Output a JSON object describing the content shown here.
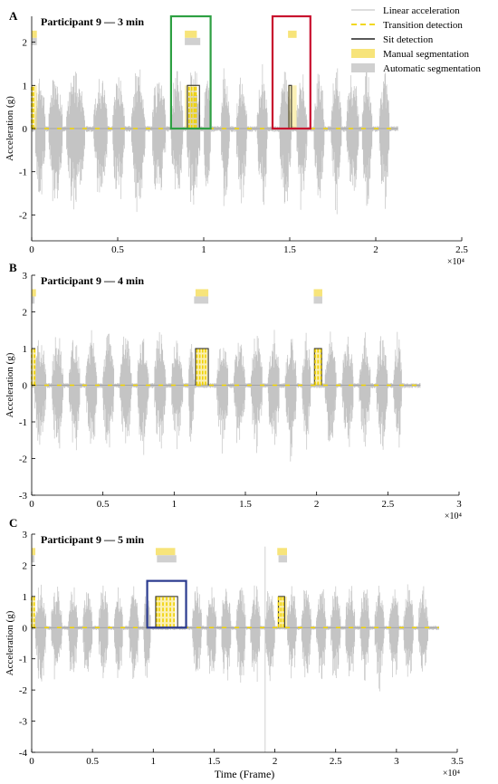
{
  "chart_data": [
    {
      "type": "line",
      "panel_label": "A",
      "title": "Participant 9 — 3 min",
      "xlabel": "",
      "ylabel": "Acceleration (g)",
      "xlim": [
        0,
        2.5
      ],
      "ylim": [
        -2.6,
        2.6
      ],
      "xticks": [
        "0",
        "0.5",
        "1",
        "1.5",
        "2",
        "2.5"
      ],
      "xtick_values": [
        0,
        0.5,
        1,
        1.5,
        2,
        2.5
      ],
      "yticks": [
        "-2",
        "-1",
        "0",
        "1",
        "2"
      ],
      "ytick_values": [
        -2,
        -1,
        0,
        1,
        2
      ],
      "x_multiplier": "×10⁴",
      "signal_end_x": 2.13,
      "active_bursts": [
        [
          0.02,
          0.08
        ],
        [
          0.1,
          0.18
        ],
        [
          0.2,
          0.31
        ],
        [
          0.36,
          0.44
        ],
        [
          0.47,
          0.54
        ],
        [
          0.58,
          0.66
        ],
        [
          0.7,
          0.78
        ],
        [
          0.81,
          0.88
        ],
        [
          0.9,
          0.98
        ],
        [
          1.0,
          1.04
        ],
        [
          1.1,
          1.15
        ],
        [
          1.19,
          1.25
        ],
        [
          1.31,
          1.37
        ],
        [
          1.44,
          1.51
        ],
        [
          1.54,
          1.6
        ],
        [
          1.64,
          1.7
        ],
        [
          1.74,
          1.8
        ],
        [
          1.83,
          1.9
        ],
        [
          1.92,
          1.98
        ],
        [
          2.02,
          2.08
        ]
      ],
      "manual_segments": [
        [
          0.0,
          0.03
        ],
        [
          0.89,
          0.96
        ],
        [
          1.49,
          1.54
        ]
      ],
      "automatic_segments": [
        [
          0.0,
          0.03
        ],
        [
          0.89,
          0.98
        ]
      ],
      "sit_detection_high": [
        [
          0.905,
          0.975
        ],
        [
          1.495,
          1.51
        ]
      ],
      "transition_marks": [
        0.0,
        0.01,
        0.915,
        0.93,
        0.945,
        0.955
      ],
      "highlight_boxes": [
        {
          "x": [
            0.81,
            1.04
          ],
          "y": [
            0.0,
            2.6
          ],
          "color": "#2ea043"
        },
        {
          "x": [
            1.4,
            1.62
          ],
          "y": [
            0.0,
            2.6
          ],
          "color": "#c8102e"
        }
      ]
    },
    {
      "type": "line",
      "panel_label": "B",
      "title": "Participant 9 — 4 min",
      "xlabel": "",
      "ylabel": "Acceleration (g)",
      "xlim": [
        0,
        3
      ],
      "ylim": [
        -3,
        3
      ],
      "xticks": [
        "0",
        "0.5",
        "1",
        "1.5",
        "2",
        "2.5",
        "3"
      ],
      "xtick_values": [
        0,
        0.5,
        1,
        1.5,
        2,
        2.5,
        3
      ],
      "yticks": [
        "-3",
        "-2",
        "-1",
        "0",
        "1",
        "2",
        "3"
      ],
      "ytick_values": [
        -3,
        -2,
        -1,
        0,
        1,
        2,
        3
      ],
      "x_multiplier": "×10⁴",
      "signal_end_x": 2.73,
      "active_bursts": [
        [
          0.02,
          0.1
        ],
        [
          0.14,
          0.22
        ],
        [
          0.26,
          0.34
        ],
        [
          0.38,
          0.46
        ],
        [
          0.5,
          0.58
        ],
        [
          0.62,
          0.7
        ],
        [
          0.74,
          0.82
        ],
        [
          0.86,
          0.94
        ],
        [
          0.98,
          1.06
        ],
        [
          1.1,
          1.14
        ],
        [
          1.3,
          1.38
        ],
        [
          1.42,
          1.5
        ],
        [
          1.54,
          1.62
        ],
        [
          1.66,
          1.74
        ],
        [
          1.78,
          1.86
        ],
        [
          1.9,
          1.96
        ],
        [
          2.06,
          2.14
        ],
        [
          2.18,
          2.26
        ],
        [
          2.3,
          2.38
        ],
        [
          2.42,
          2.5
        ],
        [
          2.54,
          2.6
        ]
      ],
      "manual_segments": [
        [
          0.0,
          0.03
        ],
        [
          1.15,
          1.24
        ],
        [
          1.98,
          2.04
        ]
      ],
      "automatic_segments": [
        [
          0.0,
          0.02
        ],
        [
          1.14,
          1.24
        ],
        [
          1.98,
          2.04
        ]
      ],
      "sit_detection_high": [
        [
          1.15,
          1.24
        ],
        [
          1.985,
          2.035
        ]
      ],
      "transition_marks": [
        0.0,
        0.02,
        1.16,
        1.18,
        1.2,
        1.22,
        1.99,
        2.01,
        2.03
      ],
      "highlight_boxes": []
    },
    {
      "type": "line",
      "panel_label": "C",
      "title": "Participant 9 — 5 min",
      "xlabel": "Time (Frame)",
      "ylabel": "Acceleration (g)",
      "xlim": [
        0,
        3.5
      ],
      "ylim": [
        -4,
        3
      ],
      "xticks": [
        "0",
        "0.5",
        "1",
        "1.5",
        "2",
        "2.5",
        "3",
        "3.5"
      ],
      "xtick_values": [
        0,
        0.5,
        1,
        1.5,
        2,
        2.5,
        3,
        3.5
      ],
      "yticks": [
        "-4",
        "-3",
        "-2",
        "-1",
        "0",
        "1",
        "2",
        "3"
      ],
      "ytick_values": [
        -4,
        -3,
        -2,
        -1,
        0,
        1,
        2,
        3
      ],
      "x_multiplier": "×10⁴",
      "signal_end_x": 3.35,
      "active_bursts": [
        [
          0.03,
          0.12
        ],
        [
          0.16,
          0.25
        ],
        [
          0.3,
          0.38
        ],
        [
          0.42,
          0.5
        ],
        [
          0.55,
          0.63
        ],
        [
          0.68,
          0.75
        ],
        [
          0.8,
          0.88
        ],
        [
          0.92,
          0.98
        ],
        [
          1.32,
          1.4
        ],
        [
          1.44,
          1.52
        ],
        [
          1.56,
          1.64
        ],
        [
          1.68,
          1.76
        ],
        [
          1.8,
          1.88
        ],
        [
          1.92,
          2.0
        ],
        [
          2.1,
          2.18
        ],
        [
          2.22,
          2.3
        ],
        [
          2.34,
          2.42
        ],
        [
          2.46,
          2.54
        ],
        [
          2.58,
          2.66
        ],
        [
          2.7,
          2.78
        ],
        [
          2.82,
          2.9
        ],
        [
          2.94,
          3.02
        ],
        [
          3.06,
          3.14
        ],
        [
          3.18,
          3.26
        ]
      ],
      "manual_segments": [
        [
          0.0,
          0.03
        ],
        [
          1.02,
          1.18
        ],
        [
          2.02,
          2.1
        ]
      ],
      "automatic_segments": [
        [
          0.0,
          0.02
        ],
        [
          1.03,
          1.19
        ],
        [
          2.03,
          2.1
        ]
      ],
      "sit_detection_high": [
        [
          1.02,
          1.2
        ],
        [
          2.03,
          2.08
        ]
      ],
      "transition_marks": [
        0.0,
        0.02,
        1.03,
        1.05,
        1.08,
        1.11,
        1.14,
        1.17,
        2.03,
        2.05,
        2.07
      ],
      "spike": {
        "x": 1.92,
        "min": -4.0,
        "max": 2.6
      },
      "highlight_boxes": [
        {
          "x": [
            0.95,
            1.27
          ],
          "y": [
            0.0,
            1.5
          ],
          "color": "#2b3b8f"
        }
      ]
    }
  ],
  "legend": {
    "placement": "top-right",
    "items": [
      {
        "label": "Linear acceleration",
        "kind": "thin-line",
        "color": "#bbbbbb"
      },
      {
        "label": "Transition detection",
        "kind": "dashed-line",
        "color": "#f0d200"
      },
      {
        "label": "Sit detection",
        "kind": "line",
        "color": "#222222"
      },
      {
        "label": "Manual segmentation",
        "kind": "patch",
        "color": "#f7e47a"
      },
      {
        "label": "Automatic segmentation",
        "kind": "patch",
        "color": "#d0d0d0"
      }
    ]
  }
}
